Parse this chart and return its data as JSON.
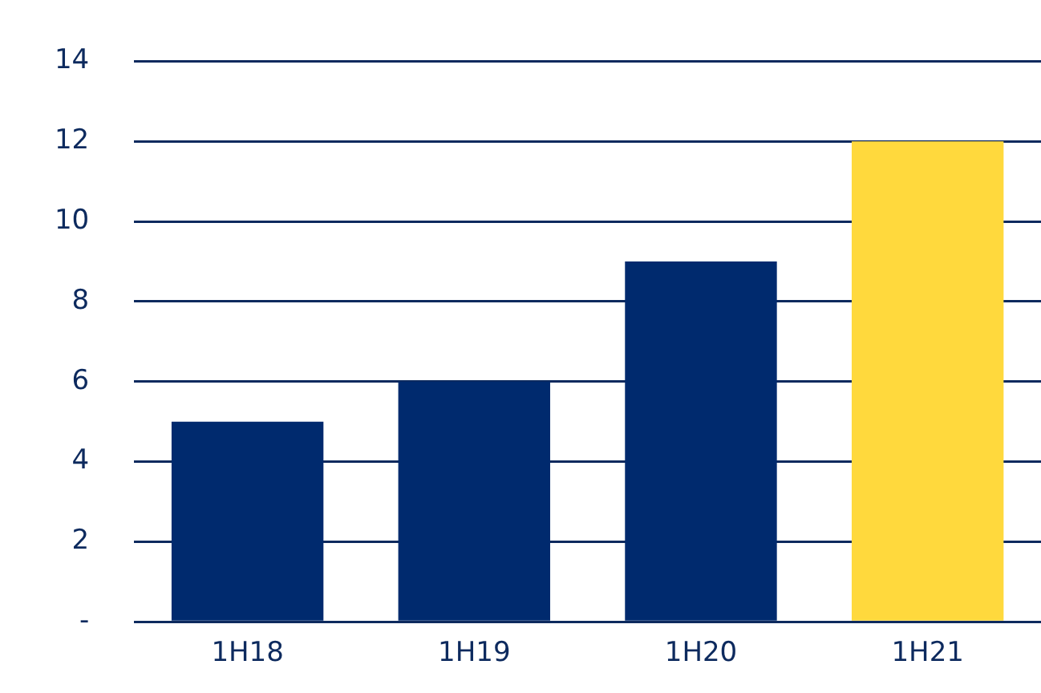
{
  "chart_data": {
    "type": "bar",
    "categories": [
      "1H18",
      "1H19",
      "1H20",
      "1H21"
    ],
    "values": [
      5,
      6,
      9,
      12
    ],
    "colors": [
      "#002a6e",
      "#002a6e",
      "#002a6e",
      "#ffd93d"
    ],
    "ylim": [
      0,
      14
    ],
    "yticks": [
      {
        "value": 0,
        "label": "-"
      },
      2,
      4,
      6,
      8,
      10,
      12,
      14
    ],
    "grid": "y",
    "legend": false
  }
}
